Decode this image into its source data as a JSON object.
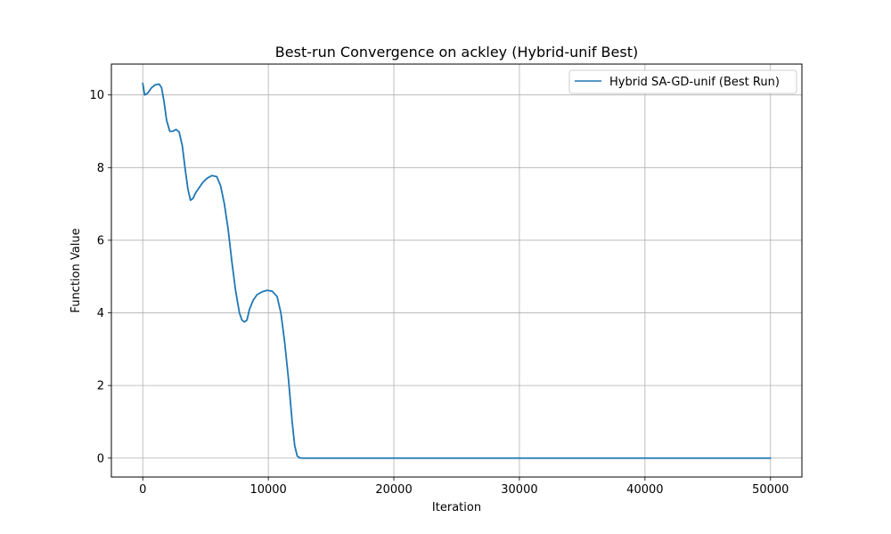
{
  "chart_data": {
    "type": "line",
    "title": "Best-run Convergence on ackley (Hybrid-unif Best)",
    "xlabel": "Iteration",
    "ylabel": "Function Value",
    "xlim": [
      -2500,
      52500
    ],
    "ylim": [
      -0.52,
      10.85
    ],
    "xticks": [
      0,
      10000,
      20000,
      30000,
      40000,
      50000
    ],
    "yticks": [
      0,
      2,
      4,
      6,
      8,
      10
    ],
    "xtick_labels": [
      "0",
      "10000",
      "20000",
      "30000",
      "40000",
      "50000"
    ],
    "ytick_labels": [
      "0",
      "2",
      "4",
      "6",
      "8",
      "10"
    ],
    "grid": true,
    "legend_position": "top-right",
    "series": [
      {
        "name": "Hybrid SA-GD-unif (Best Run)",
        "color": "#1f77b4",
        "x": [
          0,
          150,
          400,
          700,
          1000,
          1300,
          1500,
          1700,
          1900,
          2150,
          2400,
          2650,
          2900,
          3150,
          3400,
          3600,
          3800,
          4000,
          4200,
          4500,
          4800,
          5100,
          5500,
          5900,
          6200,
          6500,
          6800,
          7100,
          7400,
          7700,
          7900,
          8100,
          8300,
          8500,
          8800,
          9100,
          9500,
          9900,
          10300,
          10700,
          11000,
          11300,
          11600,
          11900,
          12100,
          12300,
          12500,
          12700,
          12800,
          13000,
          15000,
          20000,
          25000,
          30000,
          35000,
          40000,
          45000,
          50000
        ],
        "y": [
          10.32,
          10.0,
          10.05,
          10.2,
          10.28,
          10.3,
          10.2,
          9.8,
          9.3,
          9.0,
          9.0,
          9.05,
          8.98,
          8.6,
          7.9,
          7.4,
          7.1,
          7.15,
          7.3,
          7.45,
          7.6,
          7.7,
          7.78,
          7.75,
          7.5,
          7.0,
          6.3,
          5.4,
          4.6,
          4.0,
          3.8,
          3.75,
          3.8,
          4.1,
          4.35,
          4.5,
          4.58,
          4.62,
          4.6,
          4.45,
          4.0,
          3.2,
          2.2,
          1.0,
          0.35,
          0.06,
          0.01,
          0.0,
          0.0,
          0.0,
          0.0,
          0.0,
          0.0,
          0.0,
          0.0,
          0.0,
          0.0,
          0.0
        ]
      }
    ]
  }
}
